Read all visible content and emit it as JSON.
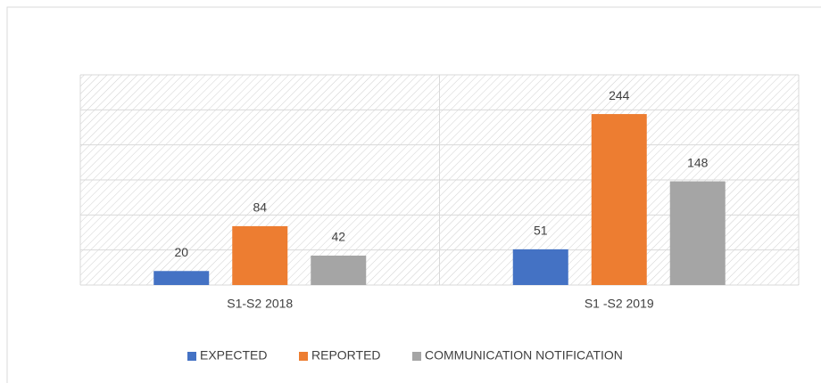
{
  "chart_data": {
    "type": "bar",
    "categories": [
      "S1-S2 2018",
      "S1 -S2 2019"
    ],
    "series": [
      {
        "name": "EXPECTED",
        "color": "#4472c4",
        "values": [
          20,
          51
        ]
      },
      {
        "name": "REPORTED",
        "color": "#ed7d31",
        "values": [
          84,
          244
        ]
      },
      {
        "name": "COMMUNICATION NOTIFICATION",
        "color": "#a5a5a5",
        "values": [
          42,
          148
        ]
      }
    ],
    "ylim": [
      0,
      300
    ],
    "yticks": [
      0,
      50,
      100,
      150,
      200,
      250,
      300
    ],
    "grid": true,
    "legend": "bottom"
  }
}
